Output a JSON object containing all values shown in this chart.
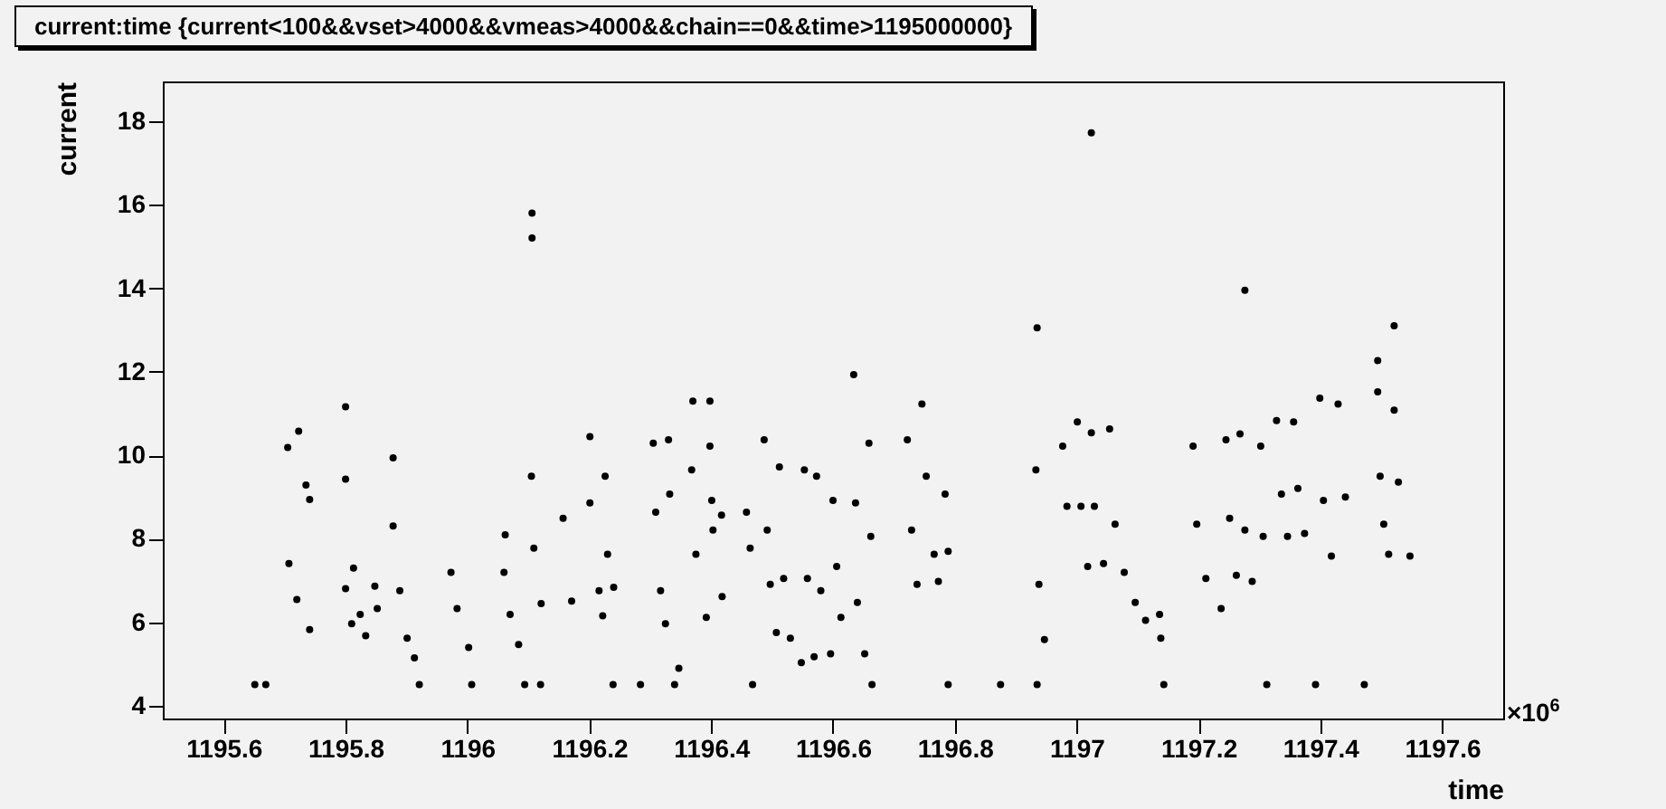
{
  "chart_data": {
    "type": "scatter",
    "title": "current:time {current<100&&vset>4000&&vmeas>4000&&chain==0&&time>1195000000}",
    "xlabel": "time",
    "ylabel": "current",
    "annotations": [
      "×10$^{6}$"
    ],
    "xlim": [
      1195.5,
      1197.7
    ],
    "xticks": [
      1195.6,
      1195.8,
      1196,
      1196.2,
      1196.4,
      1196.6,
      1196.8,
      1197,
      1197.2,
      1197.4,
      1197.6
    ],
    "ylim": [
      3.7,
      18.95
    ],
    "yticks": [
      4,
      6,
      8,
      10,
      12,
      14,
      16,
      18
    ],
    "grid": false,
    "marker": "circle",
    "series": [
      {
        "color": "#000000",
        "x": [
          1195.707,
          1195.72,
          1195.741,
          1195.705,
          1195.723,
          1195.735,
          1195.741,
          1195.8,
          1195.81,
          1195.8,
          1195.8,
          1195.813,
          1195.824,
          1195.833,
          1195.848,
          1195.852,
          1195.878,
          1195.889,
          1195.901,
          1195.913,
          1195.878,
          1195.973,
          1195.983,
          1196.002,
          1196.06,
          1196.07,
          1196.084,
          1196.062,
          1196.105,
          1196.109,
          1196.121,
          1196.106,
          1196.106,
          1196.157,
          1196.171,
          1196.201,
          1196.216,
          1196.222,
          1196.201,
          1196.226,
          1196.23,
          1196.24,
          1196.305,
          1196.309,
          1196.317,
          1196.325,
          1196.33,
          1196.332,
          1196.368,
          1196.375,
          1196.392,
          1196.37,
          1196.398,
          1196.401,
          1196.403,
          1196.398,
          1196.417,
          1196.418,
          1196.458,
          1196.464,
          1196.487,
          1196.492,
          1196.497,
          1196.507,
          1196.512,
          1196.519,
          1196.53,
          1196.548,
          1196.553,
          1196.558,
          1196.569,
          1196.573,
          1196.58,
          1196.596,
          1196.6,
          1196.606,
          1196.613,
          1196.637,
          1196.64,
          1196.652,
          1196.659,
          1196.662,
          1196.722,
          1196.729,
          1196.738,
          1196.746,
          1196.753,
          1196.766,
          1196.773,
          1196.784,
          1196.789,
          1196.933,
          1196.938,
          1196.947,
          1196.977,
          1196.984,
          1197.001,
          1197.007,
          1197.018,
          1197.024,
          1197.029,
          1197.044,
          1197.054,
          1197.063,
          1197.078,
          1197.096,
          1197.113,
          1197.138,
          1197.136,
          1197.191,
          1197.197,
          1197.212,
          1197.237,
          1197.245,
          1197.251,
          1197.262,
          1197.268,
          1197.276,
          1197.288,
          1197.302,
          1197.306,
          1197.328,
          1197.336,
          1197.346,
          1197.356,
          1197.363,
          1197.374,
          1197.399,
          1197.405,
          1197.418,
          1197.429,
          1197.441,
          1197.494,
          1197.498,
          1197.504,
          1197.512,
          1197.494,
          1197.521,
          1197.528,
          1197.547,
          1197.521,
          1197.024,
          1197.276,
          1196.935,
          1196.634,
          1196.347,
          1195.651,
          1195.669,
          1195.921,
          1196.007,
          1196.094,
          1196.12,
          1196.239,
          1196.284,
          1196.34,
          1196.468,
          1196.664,
          1196.789,
          1196.875,
          1196.935,
          1197.143,
          1197.312,
          1197.392,
          1197.472
        ],
        "values": [
          7.41,
          6.55,
          5.83,
          10.19,
          10.58,
          9.29,
          8.94,
          6.81,
          5.97,
          9.43,
          11.16,
          7.3,
          6.19,
          5.68,
          6.87,
          6.33,
          8.31,
          6.76,
          5.62,
          5.15,
          9.94,
          7.2,
          6.33,
          5.4,
          7.2,
          6.19,
          5.47,
          8.1,
          9.5,
          7.78,
          6.45,
          15.8,
          15.2,
          8.49,
          6.51,
          8.86,
          6.76,
          6.16,
          10.45,
          9.5,
          7.63,
          6.84,
          10.29,
          8.64,
          6.76,
          5.97,
          10.37,
          9.07,
          9.65,
          7.63,
          6.12,
          11.3,
          10.22,
          8.92,
          8.21,
          11.3,
          8.57,
          6.62,
          8.64,
          7.78,
          10.37,
          8.21,
          6.91,
          5.76,
          9.72,
          7.05,
          5.62,
          5.04,
          9.65,
          7.05,
          5.18,
          9.5,
          6.76,
          5.25,
          8.92,
          7.34,
          6.12,
          8.86,
          6.48,
          5.25,
          10.29,
          8.06,
          10.37,
          8.21,
          6.91,
          11.23,
          9.5,
          7.63,
          6.98,
          9.07,
          7.7,
          9.65,
          6.91,
          5.59,
          10.22,
          8.78,
          10.8,
          8.78,
          7.34,
          10.54,
          8.78,
          7.41,
          10.63,
          8.35,
          7.2,
          6.48,
          6.05,
          5.62,
          6.19,
          10.22,
          8.35,
          7.05,
          6.33,
          10.37,
          8.49,
          7.13,
          10.51,
          8.21,
          6.98,
          10.22,
          8.06,
          10.83,
          9.07,
          8.06,
          10.8,
          9.21,
          8.13,
          11.37,
          8.92,
          7.59,
          11.23,
          9.0,
          11.52,
          9.5,
          8.35,
          7.63,
          12.27,
          11.08,
          9.36,
          7.59,
          13.1,
          17.72,
          13.95,
          13.05,
          11.93,
          4.9,
          4.51,
          4.51,
          4.51,
          4.51,
          4.51,
          4.51,
          4.51,
          4.51,
          4.51,
          4.51,
          4.51,
          4.51,
          4.51,
          4.51,
          4.51,
          4.51,
          4.51,
          4.51
        ]
      }
    ]
  }
}
